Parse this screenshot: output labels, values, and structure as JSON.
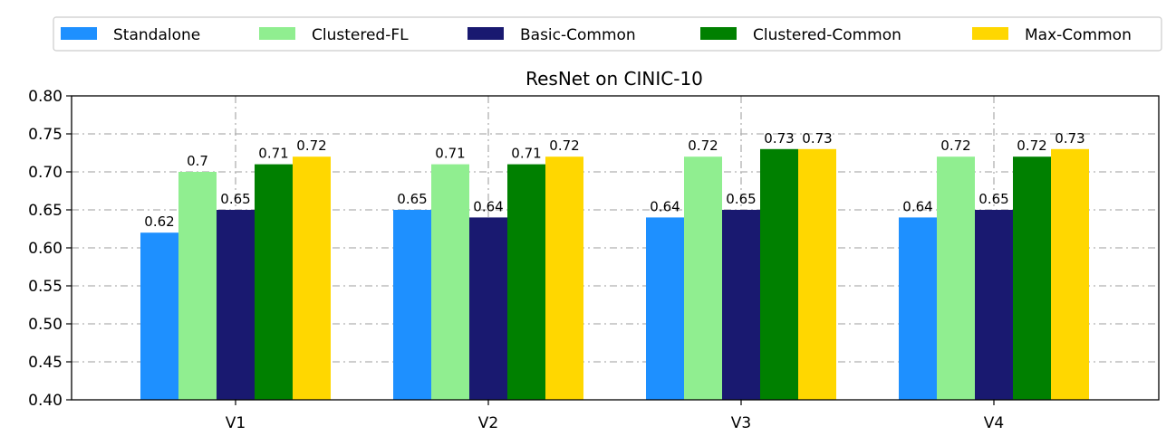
{
  "chart_data": {
    "type": "bar",
    "title": "ResNet on CINIC-10",
    "xlabel": "",
    "ylabel": "",
    "categories": [
      "V1",
      "V2",
      "V3",
      "V4"
    ],
    "ylim": [
      0.4,
      0.8
    ],
    "yticks": [
      "0.40",
      "0.45",
      "0.50",
      "0.55",
      "0.60",
      "0.65",
      "0.70",
      "0.75",
      "0.80"
    ],
    "grid": true,
    "legend_position": "top",
    "series": [
      {
        "name": "Standalone",
        "color": "#1e90ff",
        "values": [
          0.62,
          0.65,
          0.64,
          0.64
        ],
        "labels": [
          "0.62",
          "0.65",
          "0.64",
          "0.64"
        ]
      },
      {
        "name": "Clustered-FL",
        "color": "#90ee90",
        "values": [
          0.7,
          0.71,
          0.72,
          0.72
        ],
        "labels": [
          "0.7",
          "0.71",
          "0.72",
          "0.72"
        ]
      },
      {
        "name": "Basic-Common",
        "color": "#191970",
        "values": [
          0.65,
          0.64,
          0.65,
          0.65
        ],
        "labels": [
          "0.65",
          "0.64",
          "0.65",
          "0.65"
        ]
      },
      {
        "name": "Clustered-Common",
        "color": "#008000",
        "values": [
          0.71,
          0.71,
          0.73,
          0.72
        ],
        "labels": [
          "0.71",
          "0.71",
          "0.73",
          "0.72"
        ]
      },
      {
        "name": "Max-Common",
        "color": "#ffd700",
        "values": [
          0.72,
          0.72,
          0.73,
          0.73
        ],
        "labels": [
          "0.72",
          "0.72",
          "0.73",
          "0.73"
        ]
      }
    ]
  }
}
